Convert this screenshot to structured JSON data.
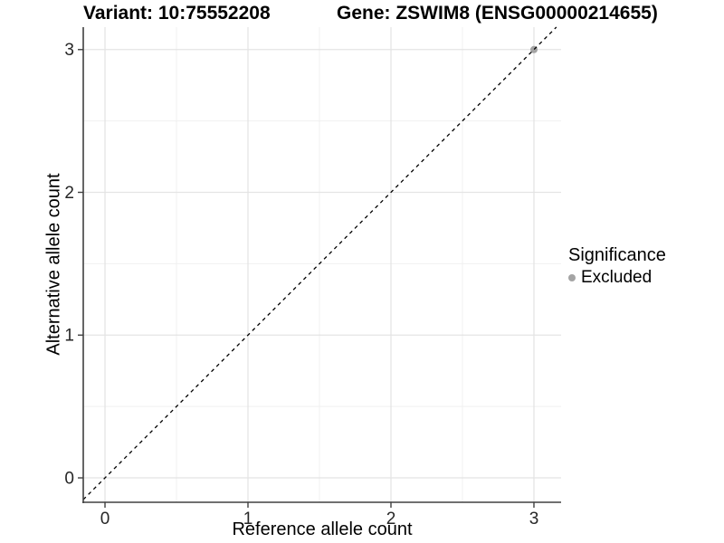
{
  "colors": {
    "background": "#ffffff",
    "grid_major": "#e4e4e4",
    "grid_minor": "#f0f0f0",
    "axis_line": "#404040",
    "tick_text": "#262626",
    "excluded_point": "#a4a4a4",
    "reference_line": "#000000"
  },
  "legend": {
    "title": "Significance",
    "items": [
      {
        "label": "Excluded",
        "color": "#a4a4a4",
        "marker": "circle-icon"
      }
    ]
  },
  "chart_data": {
    "type": "scatter",
    "titles": {
      "variant": "Variant: 10:75552208",
      "gene": "Gene: ZSWIM8 (ENSG00000214655)"
    },
    "xlabel": "Reference allele count",
    "ylabel": "Alternative allele count",
    "x_ticks": [
      0,
      1,
      2,
      3
    ],
    "y_ticks": [
      0,
      1,
      2,
      3
    ],
    "x_minor_ticks": [
      0.5,
      1.5,
      2.5
    ],
    "y_minor_ticks": [
      0.5,
      1.5,
      2.5
    ],
    "xlim": [
      -0.152,
      3.19
    ],
    "ylim": [
      -0.171,
      3.157
    ],
    "grid": true,
    "legend_position": "right",
    "reference_line": {
      "type": "identity",
      "equation": "y = x",
      "style": "dashed",
      "color": "#000000"
    },
    "series": [
      {
        "name": "Excluded",
        "color": "#a4a4a4",
        "points": [
          {
            "x": 3,
            "y": 3
          }
        ]
      }
    ]
  }
}
